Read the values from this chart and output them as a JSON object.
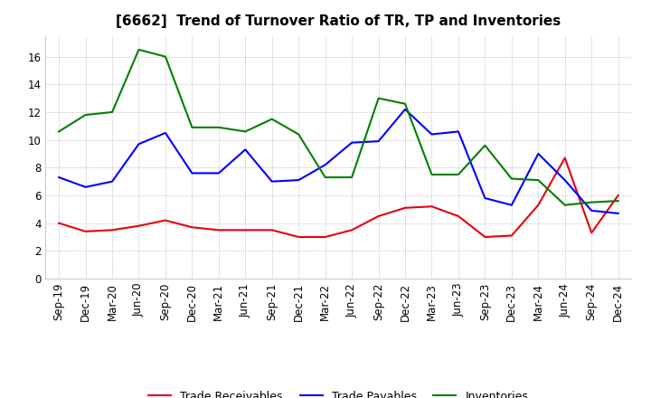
{
  "title": "[6662]  Trend of Turnover Ratio of TR, TP and Inventories",
  "x_labels": [
    "Sep-19",
    "Dec-19",
    "Mar-20",
    "Jun-20",
    "Sep-20",
    "Dec-20",
    "Mar-21",
    "Jun-21",
    "Sep-21",
    "Dec-21",
    "Mar-22",
    "Jun-22",
    "Sep-22",
    "Dec-22",
    "Mar-23",
    "Jun-23",
    "Sep-23",
    "Dec-23",
    "Mar-24",
    "Jun-24",
    "Sep-24",
    "Dec-24"
  ],
  "trade_receivables": [
    4.0,
    3.4,
    3.5,
    3.8,
    4.2,
    3.7,
    3.5,
    3.5,
    3.5,
    3.0,
    3.0,
    3.5,
    4.5,
    5.1,
    5.2,
    4.5,
    3.0,
    3.1,
    5.3,
    8.7,
    3.3,
    6.0
  ],
  "trade_payables": [
    7.3,
    6.6,
    7.0,
    9.7,
    10.5,
    7.6,
    7.6,
    9.3,
    7.0,
    7.1,
    8.2,
    9.8,
    9.9,
    12.2,
    10.4,
    10.6,
    5.8,
    5.3,
    9.0,
    7.1,
    4.9,
    4.7
  ],
  "inventories": [
    10.6,
    11.8,
    12.0,
    16.5,
    16.0,
    10.9,
    10.9,
    10.6,
    11.5,
    10.4,
    7.3,
    7.3,
    13.0,
    12.6,
    7.5,
    7.5,
    9.6,
    7.2,
    7.1,
    5.3,
    5.5,
    5.6
  ],
  "tr_color": "#e8000d",
  "tp_color": "#0000ff",
  "inv_color": "#007f00",
  "tr_label": "Trade Receivables",
  "tp_label": "Trade Payables",
  "inv_label": "Inventories",
  "ylim": [
    0.0,
    17.5
  ],
  "yticks": [
    0.0,
    2.0,
    4.0,
    6.0,
    8.0,
    10.0,
    12.0,
    14.0,
    16.0
  ],
  "ytick_labels": [
    "0",
    "2",
    "4",
    "6",
    "8",
    "10",
    "12",
    "14",
    "16"
  ],
  "bg_color": "#ffffff",
  "grid_color": "#aaaaaa",
  "title_fontsize": 11,
  "legend_fontsize": 9,
  "axis_fontsize": 8.5
}
